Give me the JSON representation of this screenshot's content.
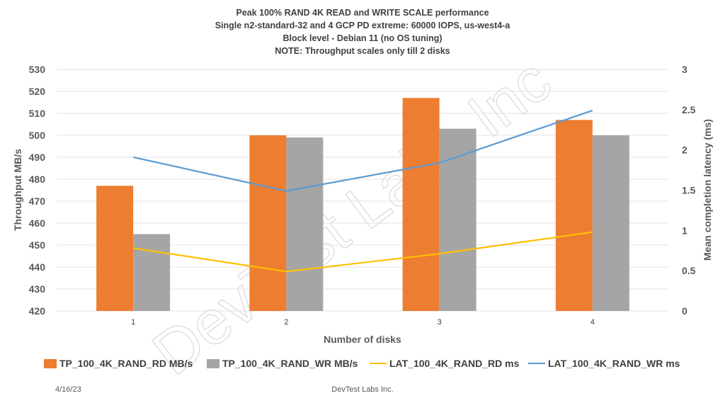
{
  "chart_data": {
    "type": "bar",
    "title_lines": [
      "Peak  100% RAND 4K READ and WRITE SCALE performance",
      "Single n2-standard-32 and 4 GCP PD extreme: 60000 IOPS, us-west4-a",
      "Block level - Debian 11 (no OS tuning)",
      "NOTE: Throughput scales only till 2 disks"
    ],
    "xlabel": "Number of disks",
    "ylabel": "Throughput MB/s",
    "y2label": "Mean completion latency (ms)",
    "categories": [
      "1",
      "2",
      "3",
      "4"
    ],
    "ylim": [
      420,
      530
    ],
    "yticks": [
      420,
      430,
      440,
      450,
      460,
      470,
      480,
      490,
      500,
      510,
      520,
      530
    ],
    "y2lim": [
      0,
      3
    ],
    "y2ticks": [
      "0",
      "0.5",
      "1",
      "1.5",
      "2",
      "2.5",
      "3"
    ],
    "grid": true,
    "legend_position": "bottom",
    "bar_series": [
      {
        "name": "TP_100_4K_RAND_RD MB/s",
        "color": "#ED7D31",
        "values": [
          477,
          500,
          517,
          507
        ]
      },
      {
        "name": "TP_100_4K_RAND_WR MB/s",
        "color": "#A5A5A5",
        "values": [
          455,
          499,
          503,
          500
        ]
      }
    ],
    "line_series": [
      {
        "name": "LAT_100_4K_RAND_RD ms",
        "color": "#FFC000",
        "axis": "right",
        "values": [
          0.78,
          0.49,
          0.71,
          0.98
        ]
      },
      {
        "name": "LAT_100_4K_RAND_WR ms",
        "color": "#5B9BD5",
        "axis": "right",
        "values": [
          1.91,
          1.49,
          1.84,
          2.49
        ]
      }
    ]
  },
  "watermark": "DevTest Labs Inc",
  "footer": {
    "date": "4/16/23",
    "company": "DevTest Labs Inc."
  }
}
